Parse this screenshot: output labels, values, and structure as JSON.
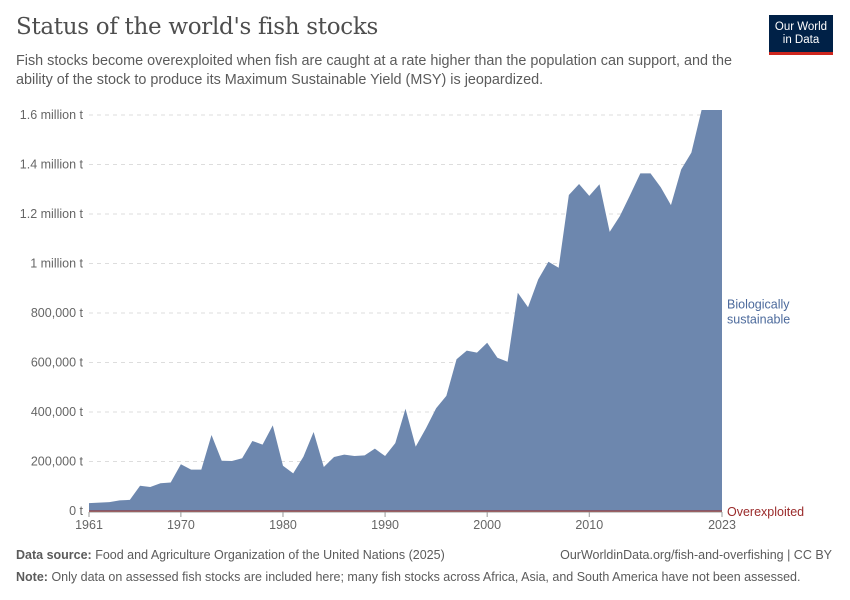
{
  "header": {
    "title": "Status of the world's fish stocks",
    "subtitle": "Fish stocks become overexploited when fish are caught at a rate higher than the population can support, and the ability of the stock to produce its Maximum Sustainable Yield (MSY) is jeopardized.",
    "logo_line1": "Our World",
    "logo_line2": "in Data"
  },
  "footer": {
    "source_label": "Data source:",
    "source": "Food and Agriculture Organization of the United Nations (2025)",
    "url": "OurWorldinData.org/fish-and-overfishing | CC BY",
    "note_label": "Note:",
    "note": "Only data on assessed fish stocks are included here; many fish stocks across Africa, Asia, and South America have not been assessed."
  },
  "chart_data": {
    "type": "area",
    "stacked": true,
    "x": [
      1961,
      1962,
      1963,
      1964,
      1965,
      1966,
      1967,
      1968,
      1969,
      1970,
      1971,
      1972,
      1973,
      1974,
      1975,
      1976,
      1977,
      1978,
      1979,
      1980,
      1981,
      1982,
      1983,
      1984,
      1985,
      1986,
      1987,
      1988,
      1989,
      1990,
      1991,
      1992,
      1993,
      1994,
      1995,
      1996,
      1997,
      1998,
      1999,
      2000,
      2001,
      2002,
      2003,
      2004,
      2005,
      2006,
      2007,
      2008,
      2009,
      2010,
      2011,
      2012,
      2013,
      2014,
      2015,
      2016,
      2017,
      2018,
      2019,
      2020,
      2021,
      2022,
      2023
    ],
    "series": [
      {
        "name": "Overexploited",
        "color": "#9a2a2a",
        "values": [
          0,
          0,
          0,
          0,
          0,
          0,
          0,
          0,
          0,
          0,
          0,
          0,
          0,
          0,
          0,
          0,
          0,
          0,
          0,
          0,
          0,
          0,
          0,
          0,
          0,
          0,
          0,
          0,
          0,
          0,
          0,
          0,
          0,
          0,
          0,
          0,
          0,
          0,
          0,
          0,
          0,
          0,
          0,
          0,
          0,
          0,
          0,
          0,
          0,
          0,
          0,
          0,
          0,
          0,
          0,
          0,
          0,
          0,
          0,
          0,
          0,
          0,
          0
        ]
      },
      {
        "name": "Biologically sustainable",
        "label_lines": [
          "Biologically",
          "sustainable"
        ],
        "color": "#6d87ae",
        "values": [
          32000,
          34000,
          36000,
          43000,
          45000,
          102000,
          97000,
          112000,
          115000,
          189000,
          167000,
          167000,
          307000,
          203000,
          202000,
          213000,
          283000,
          268000,
          346000,
          183000,
          152000,
          219000,
          319000,
          178000,
          218000,
          228000,
          222000,
          225000,
          252000,
          222000,
          274000,
          413000,
          260000,
          334000,
          415000,
          465000,
          613000,
          648000,
          640000,
          680000,
          619000,
          603000,
          882000,
          823000,
          936000,
          1007000,
          983000,
          1277000,
          1321000,
          1273000,
          1320000,
          1128000,
          1192000,
          1277000,
          1364000,
          1364000,
          1308000,
          1236000,
          1380000,
          1448000,
          1620000,
          1620000,
          1620000
        ]
      }
    ],
    "y_ticks": [
      {
        "value": 0,
        "label": "0 t"
      },
      {
        "value": 200000,
        "label": "200,000 t"
      },
      {
        "value": 400000,
        "label": "400,000 t"
      },
      {
        "value": 600000,
        "label": "600,000 t"
      },
      {
        "value": 800000,
        "label": "800,000 t"
      },
      {
        "value": 1000000,
        "label": "1 million t"
      },
      {
        "value": 1200000,
        "label": "1.2 million t"
      },
      {
        "value": 1400000,
        "label": "1.4 million t"
      },
      {
        "value": 1600000,
        "label": "1.6 million t"
      }
    ],
    "x_ticks": [
      {
        "value": 1961,
        "label": "1961"
      },
      {
        "value": 1970,
        "label": "1970"
      },
      {
        "value": 1980,
        "label": "1980"
      },
      {
        "value": 1990,
        "label": "1990"
      },
      {
        "value": 2000,
        "label": "2000"
      },
      {
        "value": 2010,
        "label": "2010"
      },
      {
        "value": 2023,
        "label": "2023"
      }
    ],
    "ylim": [
      0,
      1600000
    ],
    "xlim": [
      1961,
      2023
    ],
    "grid": "horizontal dashed",
    "legend": "right (inline labels)"
  }
}
